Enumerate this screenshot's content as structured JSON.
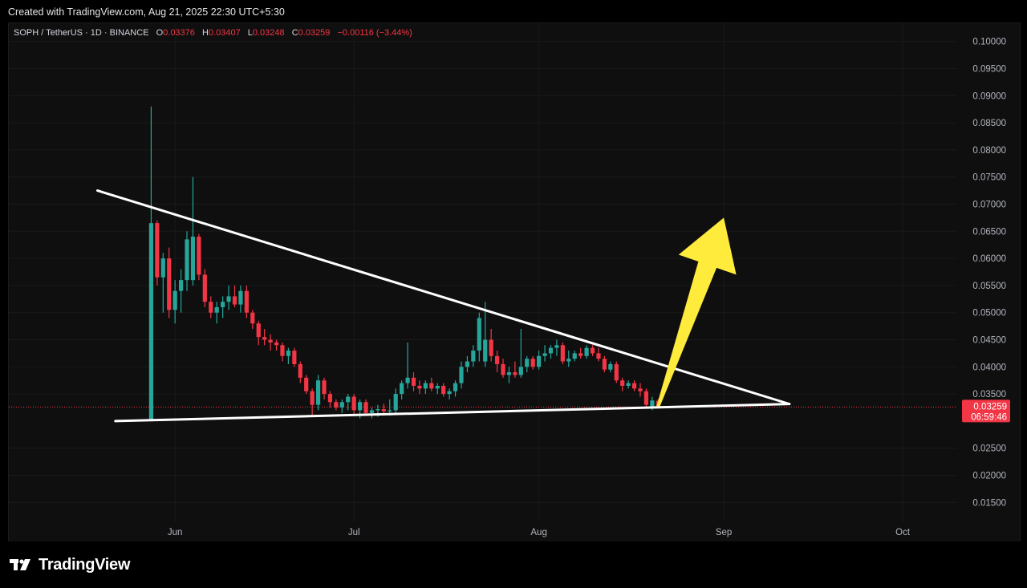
{
  "header": {
    "text": "Created with TradingView.com, Aug 21, 2025 22:30 UTC+5:30"
  },
  "legend": {
    "symbol": "SOPH / TetherUS · 1D · BINANCE",
    "open_label": "O",
    "open": "0.03376",
    "high_label": "H",
    "high": "0.03407",
    "low_label": "L",
    "low": "0.03248",
    "close_label": "C",
    "close": "0.03259",
    "change": "−0.00116 (−3.44%)"
  },
  "price_badge": {
    "price": "0.03259",
    "countdown": "06:59:46"
  },
  "brand": {
    "name": "TradingView"
  },
  "colors": {
    "up": "#26a69a",
    "down": "#f23645",
    "background": "#0f0f0f",
    "trendline": "#ffffff",
    "arrow": "#ffeb3b",
    "grid": "#1a1a1a"
  },
  "chart_data": {
    "type": "candlestick",
    "title": "SOPH / TetherUS · 1D · BINANCE",
    "y_axis": {
      "ticks": [
        "0.10000",
        "0.09500",
        "0.09000",
        "0.08500",
        "0.08000",
        "0.07500",
        "0.07000",
        "0.06500",
        "0.06000",
        "0.05500",
        "0.05000",
        "0.04500",
        "0.04000",
        "0.03500",
        "0.02500",
        "0.02000",
        "0.01500"
      ],
      "range": [
        0.0115,
        0.1035
      ],
      "position": "right"
    },
    "x_axis": {
      "ticks": [
        {
          "label": "Jun",
          "date": "2025-06-01"
        },
        {
          "label": "Jul",
          "date": "2025-07-01"
        },
        {
          "label": "Aug",
          "date": "2025-08-01"
        },
        {
          "label": "Sep",
          "date": "2025-09-01"
        },
        {
          "label": "Oct",
          "date": "2025-10-01"
        }
      ],
      "range": [
        "2025-05-04",
        "2025-10-10"
      ]
    },
    "last_price": 0.03259,
    "candles": [
      {
        "date": "2025-05-28",
        "o": 0.03,
        "h": 0.088,
        "l": 0.03,
        "c": 0.0665
      },
      {
        "date": "2025-05-29",
        "o": 0.0665,
        "h": 0.067,
        "l": 0.055,
        "c": 0.0565
      },
      {
        "date": "2025-05-30",
        "o": 0.0565,
        "h": 0.061,
        "l": 0.05,
        "c": 0.06
      },
      {
        "date": "2025-05-31",
        "o": 0.06,
        "h": 0.062,
        "l": 0.049,
        "c": 0.0505
      },
      {
        "date": "2025-06-01",
        "o": 0.0505,
        "h": 0.056,
        "l": 0.048,
        "c": 0.054
      },
      {
        "date": "2025-06-02",
        "o": 0.054,
        "h": 0.058,
        "l": 0.05,
        "c": 0.056
      },
      {
        "date": "2025-06-03",
        "o": 0.056,
        "h": 0.065,
        "l": 0.054,
        "c": 0.0635
      },
      {
        "date": "2025-06-04",
        "o": 0.056,
        "h": 0.075,
        "l": 0.055,
        "c": 0.064
      },
      {
        "date": "2025-06-05",
        "o": 0.064,
        "h": 0.0645,
        "l": 0.056,
        "c": 0.057
      },
      {
        "date": "2025-06-06",
        "o": 0.057,
        "h": 0.058,
        "l": 0.051,
        "c": 0.052
      },
      {
        "date": "2025-06-07",
        "o": 0.052,
        "h": 0.053,
        "l": 0.049,
        "c": 0.05
      },
      {
        "date": "2025-06-08",
        "o": 0.05,
        "h": 0.052,
        "l": 0.048,
        "c": 0.051
      },
      {
        "date": "2025-06-09",
        "o": 0.051,
        "h": 0.053,
        "l": 0.049,
        "c": 0.052
      },
      {
        "date": "2025-06-10",
        "o": 0.052,
        "h": 0.055,
        "l": 0.0505,
        "c": 0.053
      },
      {
        "date": "2025-06-11",
        "o": 0.053,
        "h": 0.055,
        "l": 0.051,
        "c": 0.0515
      },
      {
        "date": "2025-06-12",
        "o": 0.0515,
        "h": 0.055,
        "l": 0.05,
        "c": 0.054
      },
      {
        "date": "2025-06-13",
        "o": 0.054,
        "h": 0.055,
        "l": 0.049,
        "c": 0.05
      },
      {
        "date": "2025-06-14",
        "o": 0.05,
        "h": 0.0505,
        "l": 0.047,
        "c": 0.048
      },
      {
        "date": "2025-06-15",
        "o": 0.048,
        "h": 0.0485,
        "l": 0.044,
        "c": 0.0455
      },
      {
        "date": "2025-06-16",
        "o": 0.0455,
        "h": 0.047,
        "l": 0.044,
        "c": 0.045
      },
      {
        "date": "2025-06-17",
        "o": 0.045,
        "h": 0.046,
        "l": 0.043,
        "c": 0.0445
      },
      {
        "date": "2025-06-18",
        "o": 0.0445,
        "h": 0.045,
        "l": 0.043,
        "c": 0.044
      },
      {
        "date": "2025-06-19",
        "o": 0.044,
        "h": 0.0445,
        "l": 0.041,
        "c": 0.042
      },
      {
        "date": "2025-06-20",
        "o": 0.042,
        "h": 0.0435,
        "l": 0.0405,
        "c": 0.043
      },
      {
        "date": "2025-06-21",
        "o": 0.043,
        "h": 0.0435,
        "l": 0.04,
        "c": 0.0405
      },
      {
        "date": "2025-06-22",
        "o": 0.0405,
        "h": 0.041,
        "l": 0.037,
        "c": 0.038
      },
      {
        "date": "2025-06-23",
        "o": 0.038,
        "h": 0.0385,
        "l": 0.035,
        "c": 0.0355
      },
      {
        "date": "2025-06-24",
        "o": 0.0355,
        "h": 0.036,
        "l": 0.031,
        "c": 0.033
      },
      {
        "date": "2025-06-25",
        "o": 0.033,
        "h": 0.0385,
        "l": 0.032,
        "c": 0.0375
      },
      {
        "date": "2025-06-26",
        "o": 0.0375,
        "h": 0.038,
        "l": 0.034,
        "c": 0.035
      },
      {
        "date": "2025-06-27",
        "o": 0.035,
        "h": 0.0355,
        "l": 0.0325,
        "c": 0.0335
      },
      {
        "date": "2025-06-28",
        "o": 0.0335,
        "h": 0.034,
        "l": 0.032,
        "c": 0.0325
      },
      {
        "date": "2025-06-29",
        "o": 0.0325,
        "h": 0.034,
        "l": 0.0315,
        "c": 0.0335
      },
      {
        "date": "2025-06-30",
        "o": 0.0335,
        "h": 0.035,
        "l": 0.032,
        "c": 0.0345
      },
      {
        "date": "2025-07-01",
        "o": 0.0345,
        "h": 0.035,
        "l": 0.031,
        "c": 0.032
      },
      {
        "date": "2025-07-02",
        "o": 0.032,
        "h": 0.034,
        "l": 0.0305,
        "c": 0.0335
      },
      {
        "date": "2025-07-03",
        "o": 0.0335,
        "h": 0.034,
        "l": 0.031,
        "c": 0.0315
      },
      {
        "date": "2025-07-04",
        "o": 0.0315,
        "h": 0.0325,
        "l": 0.0305,
        "c": 0.032
      },
      {
        "date": "2025-07-05",
        "o": 0.032,
        "h": 0.033,
        "l": 0.0308,
        "c": 0.0322
      },
      {
        "date": "2025-07-06",
        "o": 0.0322,
        "h": 0.0332,
        "l": 0.031,
        "c": 0.0318
      },
      {
        "date": "2025-07-07",
        "o": 0.0318,
        "h": 0.034,
        "l": 0.031,
        "c": 0.032
      },
      {
        "date": "2025-07-08",
        "o": 0.032,
        "h": 0.036,
        "l": 0.0315,
        "c": 0.035
      },
      {
        "date": "2025-07-09",
        "o": 0.035,
        "h": 0.0375,
        "l": 0.034,
        "c": 0.037
      },
      {
        "date": "2025-07-10",
        "o": 0.037,
        "h": 0.0445,
        "l": 0.036,
        "c": 0.038
      },
      {
        "date": "2025-07-11",
        "o": 0.038,
        "h": 0.039,
        "l": 0.0355,
        "c": 0.0365
      },
      {
        "date": "2025-07-12",
        "o": 0.0365,
        "h": 0.0375,
        "l": 0.035,
        "c": 0.036
      },
      {
        "date": "2025-07-13",
        "o": 0.036,
        "h": 0.0375,
        "l": 0.035,
        "c": 0.037
      },
      {
        "date": "2025-07-14",
        "o": 0.037,
        "h": 0.038,
        "l": 0.0355,
        "c": 0.036
      },
      {
        "date": "2025-07-15",
        "o": 0.036,
        "h": 0.037,
        "l": 0.035,
        "c": 0.0365
      },
      {
        "date": "2025-07-16",
        "o": 0.0365,
        "h": 0.037,
        "l": 0.0345,
        "c": 0.035
      },
      {
        "date": "2025-07-17",
        "o": 0.035,
        "h": 0.036,
        "l": 0.034,
        "c": 0.0355
      },
      {
        "date": "2025-07-18",
        "o": 0.0355,
        "h": 0.0375,
        "l": 0.0345,
        "c": 0.037
      },
      {
        "date": "2025-07-19",
        "o": 0.037,
        "h": 0.041,
        "l": 0.036,
        "c": 0.04
      },
      {
        "date": "2025-07-20",
        "o": 0.04,
        "h": 0.042,
        "l": 0.039,
        "c": 0.041
      },
      {
        "date": "2025-07-21",
        "o": 0.041,
        "h": 0.044,
        "l": 0.04,
        "c": 0.043
      },
      {
        "date": "2025-07-22",
        "o": 0.043,
        "h": 0.05,
        "l": 0.041,
        "c": 0.049
      },
      {
        "date": "2025-07-23",
        "o": 0.041,
        "h": 0.052,
        "l": 0.04,
        "c": 0.045
      },
      {
        "date": "2025-07-24",
        "o": 0.045,
        "h": 0.047,
        "l": 0.041,
        "c": 0.042
      },
      {
        "date": "2025-07-25",
        "o": 0.042,
        "h": 0.043,
        "l": 0.039,
        "c": 0.0405
      },
      {
        "date": "2025-07-26",
        "o": 0.0405,
        "h": 0.0415,
        "l": 0.038,
        "c": 0.0385
      },
      {
        "date": "2025-07-27",
        "o": 0.0385,
        "h": 0.04,
        "l": 0.037,
        "c": 0.039
      },
      {
        "date": "2025-07-28",
        "o": 0.039,
        "h": 0.041,
        "l": 0.038,
        "c": 0.0385
      },
      {
        "date": "2025-07-29",
        "o": 0.0385,
        "h": 0.047,
        "l": 0.038,
        "c": 0.04
      },
      {
        "date": "2025-07-30",
        "o": 0.04,
        "h": 0.042,
        "l": 0.039,
        "c": 0.0415
      },
      {
        "date": "2025-07-31",
        "o": 0.0415,
        "h": 0.042,
        "l": 0.0395,
        "c": 0.04
      },
      {
        "date": "2025-08-01",
        "o": 0.04,
        "h": 0.043,
        "l": 0.0395,
        "c": 0.042
      },
      {
        "date": "2025-08-02",
        "o": 0.042,
        "h": 0.044,
        "l": 0.041,
        "c": 0.0425
      },
      {
        "date": "2025-08-03",
        "o": 0.0425,
        "h": 0.044,
        "l": 0.0415,
        "c": 0.0435
      },
      {
        "date": "2025-08-04",
        "o": 0.0435,
        "h": 0.045,
        "l": 0.042,
        "c": 0.044
      },
      {
        "date": "2025-08-05",
        "o": 0.044,
        "h": 0.0445,
        "l": 0.0405,
        "c": 0.041
      },
      {
        "date": "2025-08-06",
        "o": 0.041,
        "h": 0.043,
        "l": 0.04,
        "c": 0.0415
      },
      {
        "date": "2025-08-07",
        "o": 0.0415,
        "h": 0.043,
        "l": 0.041,
        "c": 0.0425
      },
      {
        "date": "2025-08-08",
        "o": 0.0425,
        "h": 0.0435,
        "l": 0.0415,
        "c": 0.042
      },
      {
        "date": "2025-08-09",
        "o": 0.042,
        "h": 0.044,
        "l": 0.0415,
        "c": 0.0435
      },
      {
        "date": "2025-08-10",
        "o": 0.0435,
        "h": 0.044,
        "l": 0.042,
        "c": 0.0425
      },
      {
        "date": "2025-08-11",
        "o": 0.0425,
        "h": 0.0435,
        "l": 0.041,
        "c": 0.0415
      },
      {
        "date": "2025-08-12",
        "o": 0.0415,
        "h": 0.042,
        "l": 0.039,
        "c": 0.0395
      },
      {
        "date": "2025-08-13",
        "o": 0.0395,
        "h": 0.041,
        "l": 0.039,
        "c": 0.0405
      },
      {
        "date": "2025-08-14",
        "o": 0.0405,
        "h": 0.041,
        "l": 0.037,
        "c": 0.0375
      },
      {
        "date": "2025-08-15",
        "o": 0.0375,
        "h": 0.038,
        "l": 0.0355,
        "c": 0.0365
      },
      {
        "date": "2025-08-16",
        "o": 0.0365,
        "h": 0.0375,
        "l": 0.036,
        "c": 0.037
      },
      {
        "date": "2025-08-17",
        "o": 0.037,
        "h": 0.0375,
        "l": 0.0355,
        "c": 0.036
      },
      {
        "date": "2025-08-18",
        "o": 0.036,
        "h": 0.037,
        "l": 0.0345,
        "c": 0.0355
      },
      {
        "date": "2025-08-19",
        "o": 0.0355,
        "h": 0.036,
        "l": 0.0325,
        "c": 0.033
      },
      {
        "date": "2025-08-20",
        "o": 0.0325,
        "h": 0.0345,
        "l": 0.032,
        "c": 0.0338
      },
      {
        "date": "2025-08-21",
        "o": 0.03376,
        "h": 0.03407,
        "l": 0.03248,
        "c": 0.03259
      }
    ],
    "drawings": {
      "upper_trendline": [
        {
          "date": "2025-05-19",
          "price": 0.0725
        },
        {
          "date": "2025-09-12",
          "price": 0.03315
        }
      ],
      "lower_trendline": [
        {
          "date": "2025-05-22",
          "price": 0.03
        },
        {
          "date": "2025-09-12",
          "price": 0.03315
        }
      ],
      "arrow": [
        {
          "date": "2025-08-21",
          "price": 0.0327
        },
        {
          "date": "2025-09-01",
          "price": 0.0675
        }
      ]
    }
  }
}
